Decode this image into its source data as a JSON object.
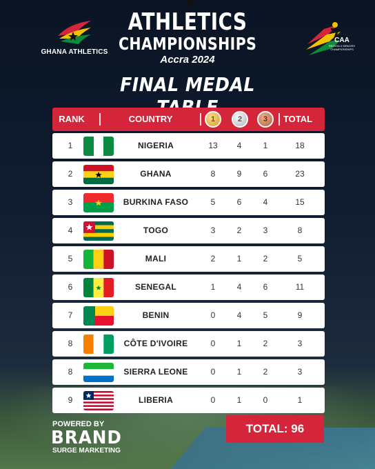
{
  "header": {
    "left_logo_text": "GHANA ATHLETICS",
    "title_line1": "ATHLETICS",
    "title_line2": "CHAMPIONSHIPS",
    "title_line3": "Accra 2024",
    "right_logo_big": "CAA",
    "right_logo_small": "REGION II SENIORS CHAMPIONSHIPS"
  },
  "page_title": "FINAL MEDAL TABLE",
  "table": {
    "columns": {
      "rank": "RANK",
      "country": "COUNTRY",
      "gold_icon": "1",
      "silver_icon": "2",
      "bronze_icon": "3",
      "total": "TOTAL"
    },
    "rows": [
      {
        "rank": "1",
        "flag": "nigeria-flag",
        "country": "NIGERIA",
        "gold": "13",
        "silver": "4",
        "bronze": "1",
        "total": "18"
      },
      {
        "rank": "2",
        "flag": "ghana-flag",
        "country": "GHANA",
        "gold": "8",
        "silver": "9",
        "bronze": "6",
        "total": "23"
      },
      {
        "rank": "3",
        "flag": "burkina-faso-flag",
        "country": "BURKINA FASO",
        "gold": "5",
        "silver": "6",
        "bronze": "4",
        "total": "15"
      },
      {
        "rank": "4",
        "flag": "togo-flag",
        "country": "TOGO",
        "gold": "3",
        "silver": "2",
        "bronze": "3",
        "total": "8"
      },
      {
        "rank": "5",
        "flag": "mali-flag",
        "country": "MALI",
        "gold": "2",
        "silver": "1",
        "bronze": "2",
        "total": "5"
      },
      {
        "rank": "6",
        "flag": "senegal-flag",
        "country": "SENEGAL",
        "gold": "1",
        "silver": "4",
        "bronze": "6",
        "total": "11"
      },
      {
        "rank": "7",
        "flag": "benin-flag",
        "country": "BENIN",
        "gold": "0",
        "silver": "4",
        "bronze": "5",
        "total": "9"
      },
      {
        "rank": "8",
        "flag": "cote-divoire-flag",
        "country": "CÔTE D'IVOIRE",
        "gold": "0",
        "silver": "1",
        "bronze": "2",
        "total": "3"
      },
      {
        "rank": "8",
        "flag": "sierra-leone-flag",
        "country": "SIERRA LEONE",
        "gold": "0",
        "silver": "1",
        "bronze": "2",
        "total": "3"
      },
      {
        "rank": "9",
        "flag": "liberia-flag",
        "country": "LIBERIA",
        "gold": "0",
        "silver": "1",
        "bronze": "0",
        "total": "1"
      }
    ]
  },
  "footer": {
    "powered_by": "POWERED BY",
    "brand": "BRAND",
    "brand_sub": "SURGE MARKETING",
    "total_label": "TOTAL:  96"
  },
  "colors": {
    "accent_red": "#d4253b",
    "background_navy": "#0a1424"
  }
}
